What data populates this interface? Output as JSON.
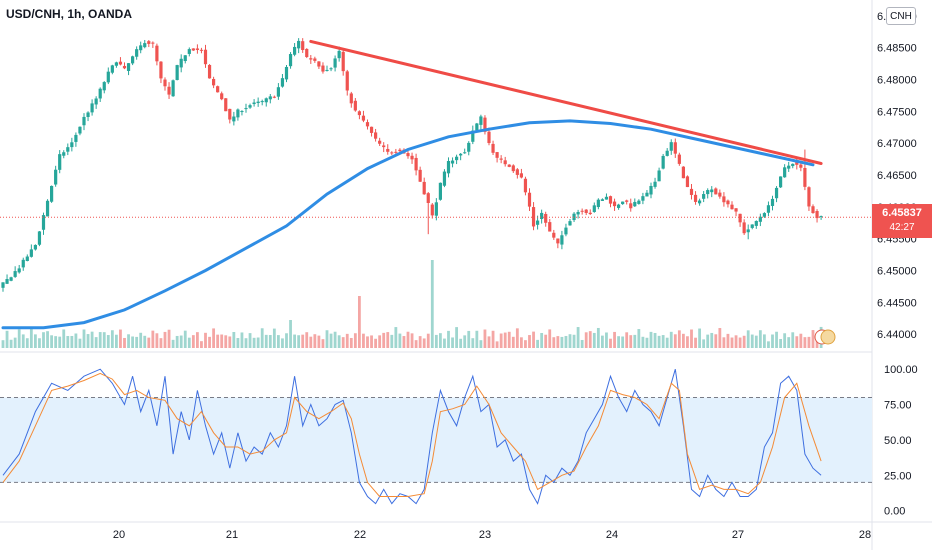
{
  "header": {
    "symbol": "USD/CNH, 1h, OANDA",
    "badge": "CNH"
  },
  "colors": {
    "up": "#26a69a",
    "down": "#ef5350",
    "ma": "#2f8de4",
    "trendline": "#ef4b46",
    "stoch_k": "#3e6fe0",
    "stoch_d": "#f48b36",
    "stoch_band": "#e3f1fd"
  },
  "last_price": {
    "value": "6.45837",
    "countdown": "42:27"
  },
  "chart_data": [
    {
      "type": "candlestick",
      "symbol": "USD/CNH",
      "interval": "1h",
      "source": "OANDA",
      "x_ticks": [
        "20",
        "21",
        "22",
        "23",
        "24",
        "27",
        "28"
      ],
      "y_ticks": [
        "6.49000",
        "6.48500",
        "6.48000",
        "6.47500",
        "6.47000",
        "6.46500",
        "6.46000",
        "6.45500",
        "6.45000",
        "6.44500",
        "6.44000"
      ],
      "ylim": [
        6.4375,
        6.4925
      ],
      "close_path": [
        [
          0,
          6.4472
        ],
        [
          5,
          6.4505
        ],
        [
          9,
          6.454
        ],
        [
          12,
          6.461
        ],
        [
          15,
          6.468
        ],
        [
          18,
          6.47
        ],
        [
          21,
          6.474
        ],
        [
          24,
          6.477
        ],
        [
          27,
          6.481
        ],
        [
          29,
          6.483
        ],
        [
          31,
          6.4815
        ],
        [
          34,
          6.4845
        ],
        [
          36,
          6.486
        ],
        [
          38,
          6.4855
        ],
        [
          40,
          6.48
        ],
        [
          42,
          6.4775
        ],
        [
          44,
          6.482
        ],
        [
          47,
          6.485
        ],
        [
          50,
          6.4845
        ],
        [
          52,
          6.48
        ],
        [
          55,
          6.477
        ],
        [
          57,
          6.4735
        ],
        [
          59,
          6.475
        ],
        [
          62,
          6.476
        ],
        [
          65,
          6.4765
        ],
        [
          68,
          6.4775
        ],
        [
          70,
          6.48
        ],
        [
          72,
          6.484
        ],
        [
          74,
          6.486
        ],
        [
          76,
          6.4835
        ],
        [
          78,
          6.483
        ],
        [
          80,
          6.4815
        ],
        [
          82,
          6.482
        ],
        [
          84,
          6.4845
        ],
        [
          86,
          6.478
        ],
        [
          88,
          6.475
        ],
        [
          90,
          6.4735
        ],
        [
          93,
          6.4705
        ],
        [
          96,
          6.4685
        ],
        [
          99,
          6.469
        ],
        [
          102,
          6.4675
        ],
        [
          104,
          6.464
        ],
        [
          106,
          6.4605
        ],
        [
          107,
          6.4585
        ],
        [
          109,
          6.4635
        ],
        [
          111,
          6.467
        ],
        [
          113,
          6.468
        ],
        [
          115,
          6.4685
        ],
        [
          117,
          6.472
        ],
        [
          119,
          6.474
        ],
        [
          121,
          6.47
        ],
        [
          123,
          6.4675
        ],
        [
          126,
          6.4665
        ],
        [
          129,
          6.4645
        ],
        [
          131,
          6.46
        ],
        [
          132,
          6.457
        ],
        [
          134,
          6.459
        ],
        [
          136,
          6.456
        ],
        [
          138,
          6.454
        ],
        [
          140,
          6.457
        ],
        [
          142,
          6.459
        ],
        [
          144,
          6.4595
        ],
        [
          146,
          6.459
        ],
        [
          148,
          6.461
        ],
        [
          150,
          6.4615
        ],
        [
          152,
          6.46
        ],
        [
          154,
          6.461
        ],
        [
          156,
          6.46
        ],
        [
          158,
          6.461
        ],
        [
          160,
          6.462
        ],
        [
          162,
          6.464
        ],
        [
          164,
          6.468
        ],
        [
          166,
          6.47
        ],
        [
          168,
          6.4665
        ],
        [
          170,
          6.463
        ],
        [
          172,
          6.4605
        ],
        [
          174,
          6.462
        ],
        [
          176,
          6.463
        ],
        [
          178,
          6.4615
        ],
        [
          180,
          6.4605
        ],
        [
          182,
          6.459
        ],
        [
          184,
          6.456
        ],
        [
          186,
          6.457
        ],
        [
          188,
          6.4585
        ],
        [
          190,
          6.46
        ],
        [
          192,
          6.463
        ],
        [
          194,
          6.466
        ],
        [
          196,
          6.467
        ],
        [
          198,
          6.466
        ],
        [
          200,
          6.46
        ],
        [
          202,
          6.4584
        ]
      ],
      "price_levels": {
        "current": 6.45837,
        "ma_last": 6.4666,
        "trend_start": 6.486,
        "trend_end": 6.4668,
        "pre_day20_low": 6.446,
        "spike_low": 6.4562,
        "mid_low": 6.455,
        "late_low": 6.455,
        "late_high": 6.469
      },
      "series": [
        {
          "name": "Moving Average",
          "points": [
            [
              0,
              6.441
            ],
            [
              10,
              6.441
            ],
            [
              20,
              6.4418
            ],
            [
              30,
              6.4438
            ],
            [
              40,
              6.4468
            ],
            [
              50,
              6.45
            ],
            [
              60,
              6.4535
            ],
            [
              70,
              6.457
            ],
            [
              80,
              6.462
            ],
            [
              90,
              6.466
            ],
            [
              100,
              6.469
            ],
            [
              110,
              6.471
            ],
            [
              120,
              6.4722
            ],
            [
              130,
              6.4732
            ],
            [
              140,
              6.4735
            ],
            [
              150,
              6.4731
            ],
            [
              160,
              6.4722
            ],
            [
              170,
              6.4708
            ],
            [
              180,
              6.4694
            ],
            [
              190,
              6.468
            ],
            [
              200,
              6.4666
            ]
          ]
        },
        {
          "name": "Trendline",
          "points": [
            [
              76,
              6.486
            ],
            [
              202,
              6.4668
            ]
          ]
        }
      ],
      "volume": {
        "spike_bar": 106,
        "relative_values": [
          0.3,
          0.45,
          0.25,
          0.35,
          0.55,
          0.4,
          0.3,
          0.6,
          0.35,
          0.25,
          0.45,
          0.5,
          0.3,
          0.4,
          0.35,
          0.55,
          0.3,
          0.45,
          0.4,
          0.25,
          0.5,
          0.35,
          0.6,
          0.3,
          0.4,
          0.45,
          0.35,
          0.55,
          0.3,
          0.5
        ]
      }
    },
    {
      "type": "line",
      "indicator": "Stochastic",
      "y_ticks": [
        "100.00",
        "75.00",
        "50.00",
        "25.00",
        "0.00"
      ],
      "ylim": [
        -8,
        110
      ],
      "band": [
        20,
        80
      ],
      "series": [
        {
          "name": "%K",
          "points": [
            [
              0,
              25
            ],
            [
              4,
              40
            ],
            [
              8,
              70
            ],
            [
              12,
              90
            ],
            [
              16,
              85
            ],
            [
              20,
              95
            ],
            [
              24,
              100
            ],
            [
              27,
              90
            ],
            [
              30,
              75
            ],
            [
              32,
              95
            ],
            [
              34,
              70
            ],
            [
              36,
              85
            ],
            [
              38,
              60
            ],
            [
              40,
              95
            ],
            [
              42,
              40
            ],
            [
              44,
              70
            ],
            [
              46,
              50
            ],
            [
              48,
              85
            ],
            [
              50,
              60
            ],
            [
              52,
              40
            ],
            [
              54,
              55
            ],
            [
              56,
              30
            ],
            [
              58,
              55
            ],
            [
              60,
              35
            ],
            [
              62,
              45
            ],
            [
              64,
              40
            ],
            [
              66,
              55
            ],
            [
              68,
              45
            ],
            [
              70,
              60
            ],
            [
              72,
              95
            ],
            [
              74,
              60
            ],
            [
              76,
              75
            ],
            [
              78,
              60
            ],
            [
              80,
              65
            ],
            [
              82,
              75
            ],
            [
              84,
              78
            ],
            [
              86,
              55
            ],
            [
              88,
              20
            ],
            [
              90,
              10
            ],
            [
              92,
              5
            ],
            [
              94,
              15
            ],
            [
              96,
              5
            ],
            [
              98,
              12
            ],
            [
              100,
              10
            ],
            [
              102,
              5
            ],
            [
              104,
              15
            ],
            [
              106,
              55
            ],
            [
              108,
              85
            ],
            [
              110,
              70
            ],
            [
              112,
              60
            ],
            [
              114,
              80
            ],
            [
              116,
              95
            ],
            [
              118,
              70
            ],
            [
              120,
              75
            ],
            [
              122,
              45
            ],
            [
              124,
              50
            ],
            [
              126,
              35
            ],
            [
              128,
              40
            ],
            [
              130,
              15
            ],
            [
              132,
              5
            ],
            [
              134,
              25
            ],
            [
              136,
              20
            ],
            [
              138,
              30
            ],
            [
              140,
              25
            ],
            [
              142,
              35
            ],
            [
              144,
              55
            ],
            [
              146,
              65
            ],
            [
              148,
              75
            ],
            [
              150,
              95
            ],
            [
              152,
              80
            ],
            [
              154,
              70
            ],
            [
              156,
              85
            ],
            [
              158,
              75
            ],
            [
              160,
              70
            ],
            [
              162,
              60
            ],
            [
              164,
              80
            ],
            [
              166,
              100
            ],
            [
              168,
              60
            ],
            [
              170,
              15
            ],
            [
              172,
              10
            ],
            [
              174,
              25
            ],
            [
              176,
              15
            ],
            [
              178,
              10
            ],
            [
              180,
              20
            ],
            [
              182,
              10
            ],
            [
              184,
              10
            ],
            [
              186,
              15
            ],
            [
              188,
              45
            ],
            [
              190,
              55
            ],
            [
              192,
              90
            ],
            [
              194,
              95
            ],
            [
              196,
              85
            ],
            [
              198,
              40
            ],
            [
              200,
              30
            ],
            [
              202,
              25
            ]
          ]
        },
        {
          "name": "%D",
          "points": [
            [
              0,
              20
            ],
            [
              4,
              35
            ],
            [
              8,
              60
            ],
            [
              12,
              85
            ],
            [
              16,
              88
            ],
            [
              20,
              92
            ],
            [
              24,
              97
            ],
            [
              27,
              93
            ],
            [
              30,
              82
            ],
            [
              33,
              85
            ],
            [
              36,
              80
            ],
            [
              40,
              78
            ],
            [
              43,
              65
            ],
            [
              46,
              60
            ],
            [
              49,
              70
            ],
            [
              52,
              55
            ],
            [
              55,
              45
            ],
            [
              58,
              45
            ],
            [
              61,
              40
            ],
            [
              64,
              42
            ],
            [
              67,
              50
            ],
            [
              70,
              55
            ],
            [
              72,
              80
            ],
            [
              75,
              70
            ],
            [
              78,
              65
            ],
            [
              81,
              70
            ],
            [
              84,
              76
            ],
            [
              86,
              65
            ],
            [
              88,
              40
            ],
            [
              90,
              20
            ],
            [
              93,
              10
            ],
            [
              96,
              10
            ],
            [
              100,
              10
            ],
            [
              104,
              12
            ],
            [
              106,
              35
            ],
            [
              108,
              70
            ],
            [
              111,
              72
            ],
            [
              114,
              75
            ],
            [
              117,
              88
            ],
            [
              120,
              75
            ],
            [
              123,
              55
            ],
            [
              126,
              45
            ],
            [
              129,
              35
            ],
            [
              132,
              15
            ],
            [
              135,
              20
            ],
            [
              138,
              25
            ],
            [
              141,
              28
            ],
            [
              144,
              45
            ],
            [
              147,
              60
            ],
            [
              150,
              85
            ],
            [
              153,
              82
            ],
            [
              156,
              80
            ],
            [
              159,
              75
            ],
            [
              162,
              65
            ],
            [
              165,
              90
            ],
            [
              167,
              85
            ],
            [
              169,
              40
            ],
            [
              172,
              15
            ],
            [
              175,
              18
            ],
            [
              178,
              15
            ],
            [
              181,
              15
            ],
            [
              184,
              12
            ],
            [
              187,
              20
            ],
            [
              190,
              45
            ],
            [
              193,
              80
            ],
            [
              196,
              90
            ],
            [
              199,
              60
            ],
            [
              202,
              35
            ]
          ]
        }
      ]
    }
  ]
}
